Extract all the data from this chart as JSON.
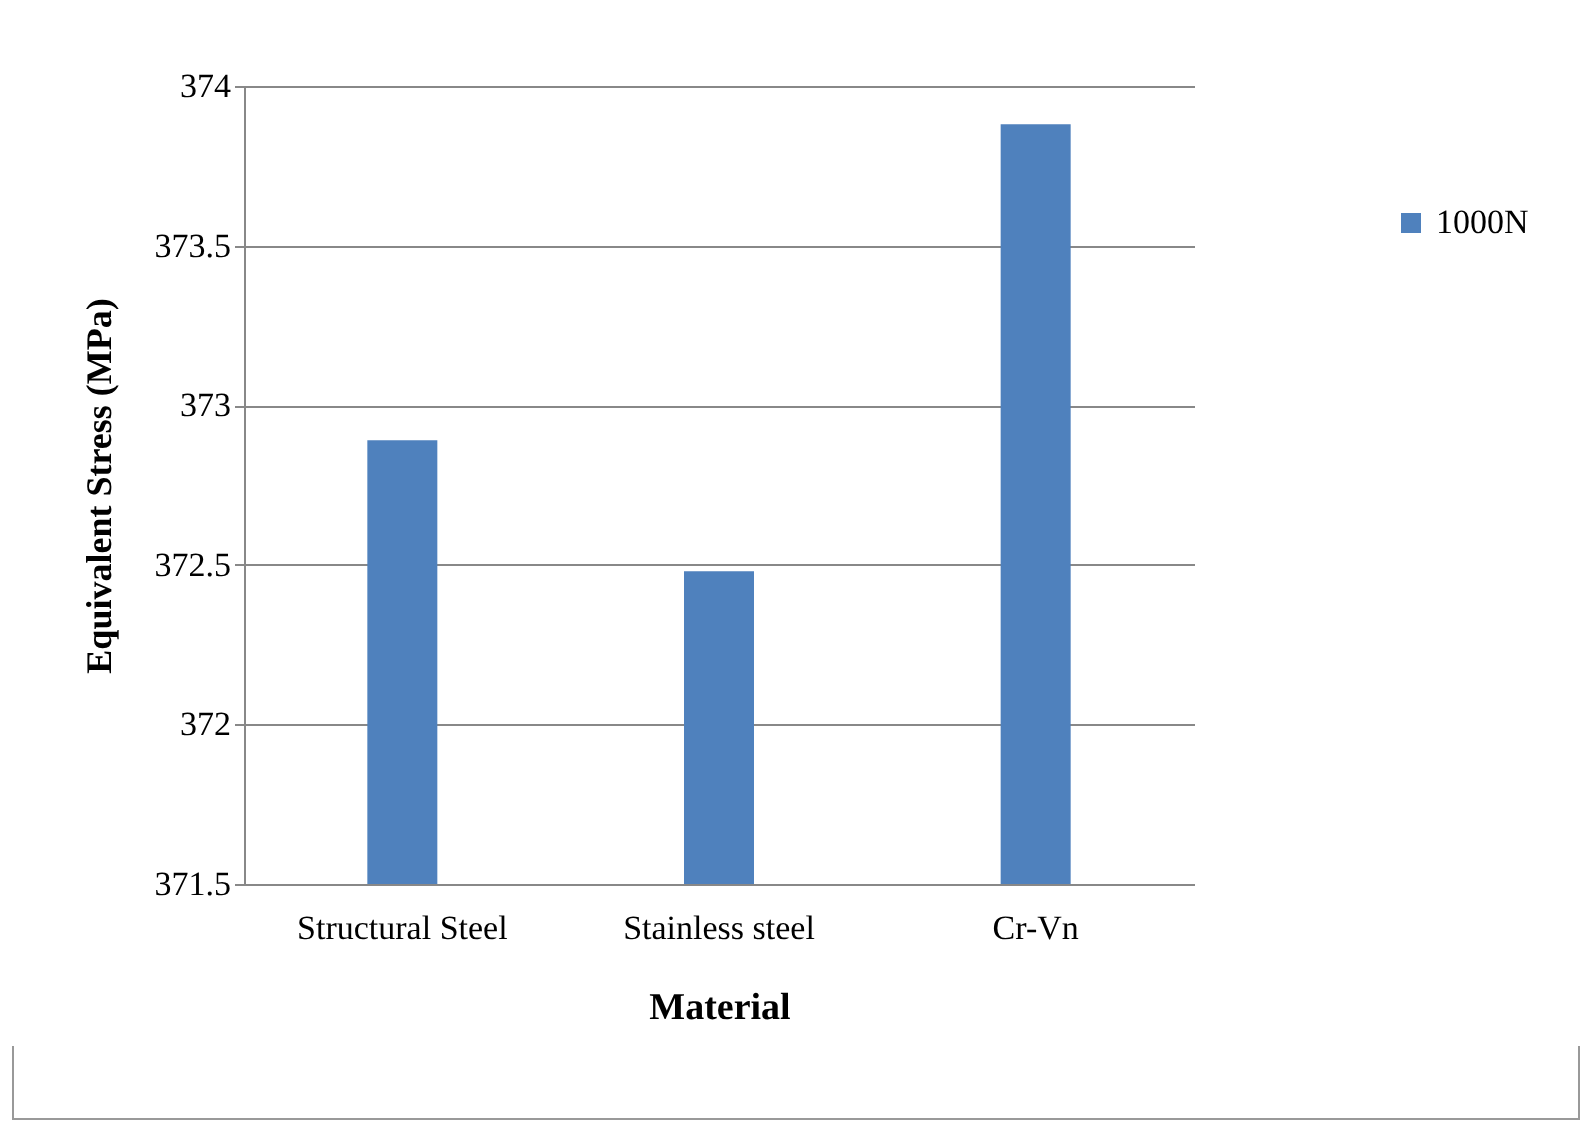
{
  "chart_data": {
    "type": "bar",
    "xlabel": "Material",
    "ylabel": "Equivalent Stress (MPa)",
    "categories": [
      "Structural Steel",
      "Stainless steel",
      "Cr-Vn"
    ],
    "series": [
      {
        "name": "1000N",
        "color": "#4f81bd",
        "values": [
          372.89,
          372.48,
          373.88
        ]
      }
    ],
    "ylim": [
      371.5,
      374
    ],
    "yticks": [
      371.5,
      372,
      372.5,
      373,
      373.5,
      374
    ],
    "grid": "y",
    "legend": "right"
  }
}
